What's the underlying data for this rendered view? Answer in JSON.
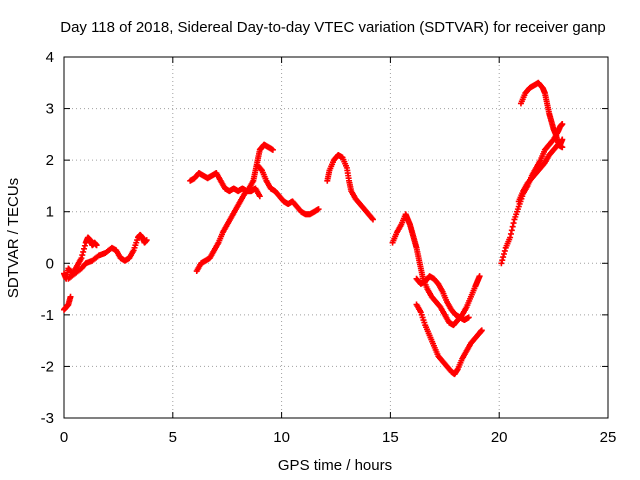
{
  "chart_data": {
    "type": "scatter",
    "title": "Day 118 of 2018, Sidereal Day-to-day VTEC variation (SDTVAR) for receiver ganp",
    "xlabel": "GPS time / hours",
    "ylabel": "SDTVAR / TECUs",
    "xlim": [
      0,
      25
    ],
    "ylim": [
      -3,
      4
    ],
    "x_ticks": [
      "0",
      "5",
      "10",
      "15",
      "20",
      "25"
    ],
    "y_ticks": [
      "-3",
      "-2",
      "-1",
      "0",
      "1",
      "2",
      "3",
      "4"
    ],
    "grid": true,
    "marker": "+",
    "series_color": "#ff0000",
    "segments": [
      [
        [
          0.0,
          -0.2
        ],
        [
          0.1,
          -0.3
        ],
        [
          0.2,
          -0.1
        ],
        [
          0.4,
          -0.2
        ],
        [
          0.6,
          -0.05
        ],
        [
          0.8,
          0.1
        ],
        [
          1.0,
          0.4
        ],
        [
          1.1,
          0.5
        ],
        [
          1.2,
          0.45
        ],
        [
          1.3,
          0.35
        ],
        [
          1.4,
          0.4
        ],
        [
          1.5,
          0.35
        ]
      ],
      [
        [
          0.0,
          -0.9
        ],
        [
          0.1,
          -0.85
        ],
        [
          0.2,
          -0.8
        ],
        [
          0.3,
          -0.65
        ]
      ],
      [
        [
          0.2,
          -0.3
        ],
        [
          0.5,
          -0.2
        ],
        [
          0.8,
          -0.1
        ],
        [
          1.0,
          0.0
        ],
        [
          1.3,
          0.05
        ],
        [
          1.6,
          0.15
        ],
        [
          1.9,
          0.2
        ],
        [
          2.2,
          0.3
        ],
        [
          2.4,
          0.25
        ],
        [
          2.6,
          0.1
        ],
        [
          2.8,
          0.05
        ],
        [
          3.0,
          0.1
        ],
        [
          3.2,
          0.25
        ],
        [
          3.4,
          0.5
        ],
        [
          3.5,
          0.55
        ],
        [
          3.6,
          0.5
        ],
        [
          3.7,
          0.4
        ],
        [
          3.8,
          0.45
        ]
      ],
      [
        [
          5.8,
          1.6
        ],
        [
          6.0,
          1.65
        ],
        [
          6.2,
          1.75
        ],
        [
          6.4,
          1.7
        ],
        [
          6.6,
          1.65
        ],
        [
          6.8,
          1.7
        ],
        [
          7.0,
          1.75
        ],
        [
          7.2,
          1.6
        ],
        [
          7.4,
          1.45
        ],
        [
          7.6,
          1.4
        ],
        [
          7.8,
          1.45
        ],
        [
          8.0,
          1.4
        ],
        [
          8.2,
          1.45
        ],
        [
          8.4,
          1.4
        ],
        [
          8.6,
          1.4
        ],
        [
          8.8,
          1.45
        ],
        [
          9.0,
          1.3
        ]
      ],
      [
        [
          6.1,
          -0.15
        ],
        [
          6.3,
          0.0
        ],
        [
          6.5,
          0.05
        ],
        [
          6.7,
          0.1
        ],
        [
          6.9,
          0.25
        ],
        [
          7.1,
          0.4
        ],
        [
          7.3,
          0.6
        ],
        [
          7.5,
          0.75
        ],
        [
          7.7,
          0.9
        ],
        [
          7.9,
          1.05
        ],
        [
          8.1,
          1.2
        ],
        [
          8.3,
          1.35
        ],
        [
          8.5,
          1.45
        ],
        [
          8.7,
          1.6
        ],
        [
          8.8,
          1.8
        ],
        [
          8.9,
          2.0
        ],
        [
          9.0,
          2.2
        ],
        [
          9.1,
          2.25
        ],
        [
          9.2,
          2.3
        ],
        [
          9.4,
          2.25
        ],
        [
          9.6,
          2.2
        ]
      ],
      [
        [
          8.9,
          1.9
        ],
        [
          9.1,
          1.8
        ],
        [
          9.3,
          1.6
        ],
        [
          9.5,
          1.45
        ],
        [
          9.7,
          1.4
        ],
        [
          9.9,
          1.3
        ],
        [
          10.1,
          1.2
        ],
        [
          10.3,
          1.15
        ],
        [
          10.5,
          1.2
        ],
        [
          10.7,
          1.1
        ],
        [
          10.9,
          1.0
        ],
        [
          11.1,
          0.95
        ],
        [
          11.3,
          0.95
        ],
        [
          11.5,
          1.0
        ],
        [
          11.7,
          1.05
        ]
      ],
      [
        [
          12.1,
          1.6
        ],
        [
          12.2,
          1.8
        ],
        [
          12.4,
          2.0
        ],
        [
          12.6,
          2.1
        ],
        [
          12.8,
          2.05
        ],
        [
          13.0,
          1.85
        ],
        [
          13.1,
          1.6
        ],
        [
          13.2,
          1.4
        ],
        [
          13.4,
          1.25
        ],
        [
          13.6,
          1.15
        ],
        [
          13.8,
          1.05
        ],
        [
          14.0,
          0.95
        ],
        [
          14.2,
          0.85
        ]
      ],
      [
        [
          15.1,
          0.4
        ],
        [
          15.3,
          0.6
        ],
        [
          15.5,
          0.75
        ],
        [
          15.7,
          0.95
        ],
        [
          15.8,
          0.85
        ],
        [
          15.9,
          0.75
        ],
        [
          16.0,
          0.6
        ],
        [
          16.1,
          0.45
        ],
        [
          16.2,
          0.3
        ],
        [
          16.3,
          0.1
        ],
        [
          16.4,
          -0.1
        ],
        [
          16.5,
          -0.3
        ],
        [
          16.7,
          -0.5
        ],
        [
          16.9,
          -0.65
        ],
        [
          17.1,
          -0.75
        ],
        [
          17.3,
          -0.85
        ],
        [
          17.5,
          -1.0
        ],
        [
          17.7,
          -1.15
        ],
        [
          17.9,
          -1.2
        ],
        [
          18.1,
          -1.1
        ],
        [
          18.3,
          -1.0
        ],
        [
          18.5,
          -0.85
        ],
        [
          18.7,
          -0.65
        ],
        [
          18.9,
          -0.45
        ],
        [
          19.0,
          -0.35
        ],
        [
          19.1,
          -0.25
        ]
      ],
      [
        [
          16.2,
          -0.3
        ],
        [
          16.4,
          -0.4
        ],
        [
          16.6,
          -0.35
        ],
        [
          16.8,
          -0.25
        ],
        [
          17.0,
          -0.3
        ],
        [
          17.2,
          -0.4
        ],
        [
          17.4,
          -0.55
        ],
        [
          17.6,
          -0.75
        ],
        [
          17.8,
          -0.9
        ],
        [
          18.0,
          -1.0
        ],
        [
          18.2,
          -1.05
        ],
        [
          18.4,
          -1.1
        ],
        [
          18.6,
          -1.05
        ]
      ],
      [
        [
          16.2,
          -0.8
        ],
        [
          16.4,
          -0.95
        ],
        [
          16.6,
          -1.2
        ],
        [
          16.8,
          -1.4
        ],
        [
          17.0,
          -1.6
        ],
        [
          17.2,
          -1.8
        ],
        [
          17.4,
          -1.9
        ],
        [
          17.6,
          -2.0
        ],
        [
          17.8,
          -2.1
        ],
        [
          17.95,
          -2.15
        ],
        [
          18.1,
          -2.05
        ],
        [
          18.3,
          -1.85
        ],
        [
          18.5,
          -1.7
        ],
        [
          18.7,
          -1.55
        ],
        [
          18.9,
          -1.45
        ],
        [
          19.1,
          -1.35
        ],
        [
          19.2,
          -1.3
        ]
      ],
      [
        [
          20.1,
          0.0
        ],
        [
          20.3,
          0.3
        ],
        [
          20.5,
          0.5
        ],
        [
          20.7,
          0.85
        ],
        [
          20.9,
          1.1
        ],
        [
          21.1,
          1.35
        ],
        [
          21.3,
          1.5
        ],
        [
          21.5,
          1.7
        ],
        [
          21.7,
          1.85
        ],
        [
          21.9,
          2.0
        ],
        [
          22.1,
          2.2
        ],
        [
          22.3,
          2.3
        ],
        [
          22.5,
          2.4
        ],
        [
          22.7,
          2.55
        ],
        [
          22.8,
          2.65
        ],
        [
          22.9,
          2.7
        ]
      ],
      [
        [
          20.9,
          1.2
        ],
        [
          21.1,
          1.4
        ],
        [
          21.3,
          1.55
        ],
        [
          21.5,
          1.65
        ],
        [
          21.7,
          1.75
        ],
        [
          21.9,
          1.85
        ],
        [
          22.1,
          1.95
        ],
        [
          22.3,
          2.1
        ],
        [
          22.5,
          2.2
        ],
        [
          22.7,
          2.3
        ],
        [
          22.9,
          2.25
        ]
      ],
      [
        [
          21.0,
          3.1
        ],
        [
          21.2,
          3.3
        ],
        [
          21.4,
          3.4
        ],
        [
          21.6,
          3.45
        ],
        [
          21.8,
          3.5
        ],
        [
          22.0,
          3.4
        ],
        [
          22.1,
          3.3
        ],
        [
          22.2,
          3.1
        ],
        [
          22.3,
          2.9
        ],
        [
          22.4,
          2.75
        ],
        [
          22.5,
          2.6
        ],
        [
          22.6,
          2.5
        ],
        [
          22.7,
          2.35
        ],
        [
          22.8,
          2.3
        ],
        [
          22.9,
          2.4
        ]
      ]
    ]
  }
}
